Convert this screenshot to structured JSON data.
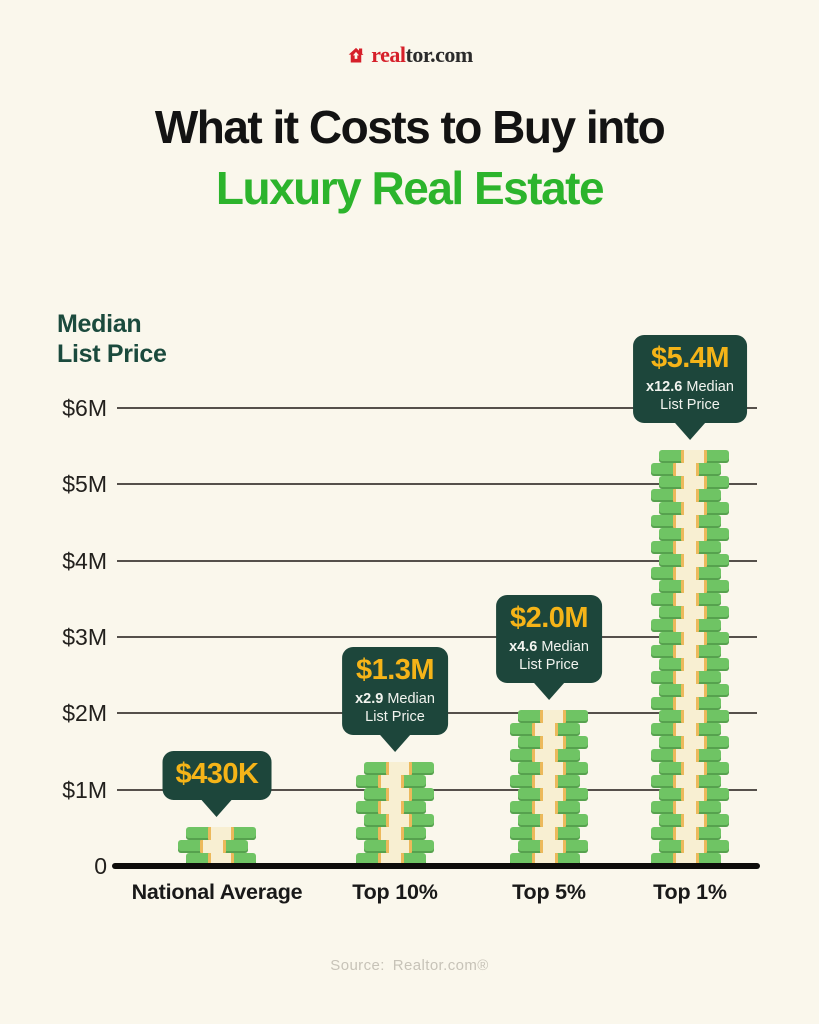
{
  "brand": {
    "name_red": "real",
    "name_dark": "tor.com",
    "icon": "realtor-house-icon"
  },
  "title": {
    "line1": "What it Costs to Buy into",
    "line2": "Luxury Real Estate"
  },
  "axis": {
    "y_title_line1": "Median",
    "y_title_line2": "List Price"
  },
  "chart_data": {
    "type": "bar",
    "title": "What it Costs to Buy into Luxury Real Estate",
    "ylabel": "Median List Price",
    "xlabel": "",
    "unit": "USD millions",
    "categories": [
      "National Average",
      "Top 10%",
      "Top 5%",
      "Top 1%"
    ],
    "values": [
      0.43,
      1.3,
      2.0,
      5.4
    ],
    "bar_labels": [
      "$430K",
      "$1.3M",
      "$2.0M",
      "$5.4M"
    ],
    "multipliers": [
      "",
      "x2.9",
      "x4.6",
      "x12.6"
    ],
    "multiplier_caption": "Median List Price",
    "y_ticks": [
      "$6M",
      "$5M",
      "$4M",
      "$3M",
      "$2M",
      "$1M",
      "0"
    ],
    "y_tick_values": [
      6,
      5,
      4,
      3,
      2,
      1,
      0
    ],
    "ylim": [
      0,
      6
    ],
    "grid": true,
    "legend": false,
    "bar_style": "stacked money bills"
  },
  "source": {
    "label": "Source:",
    "value": "Realtor.com®"
  },
  "colors": {
    "background": "#FAF7EC",
    "title_dark": "#131313",
    "title_green": "#2CB42C",
    "callout_dark_green": "#1D463B",
    "callout_gold": "#F5B418",
    "bill_green": "#6FC464",
    "bill_strap_cream": "#F8EFD2",
    "bill_strap_edge": "#ECB95B",
    "gridline_gray": "#55504B",
    "baseline_black": "#0D0C0A",
    "brand_red": "#D6202A",
    "source_gray": "#C7C3B8"
  }
}
